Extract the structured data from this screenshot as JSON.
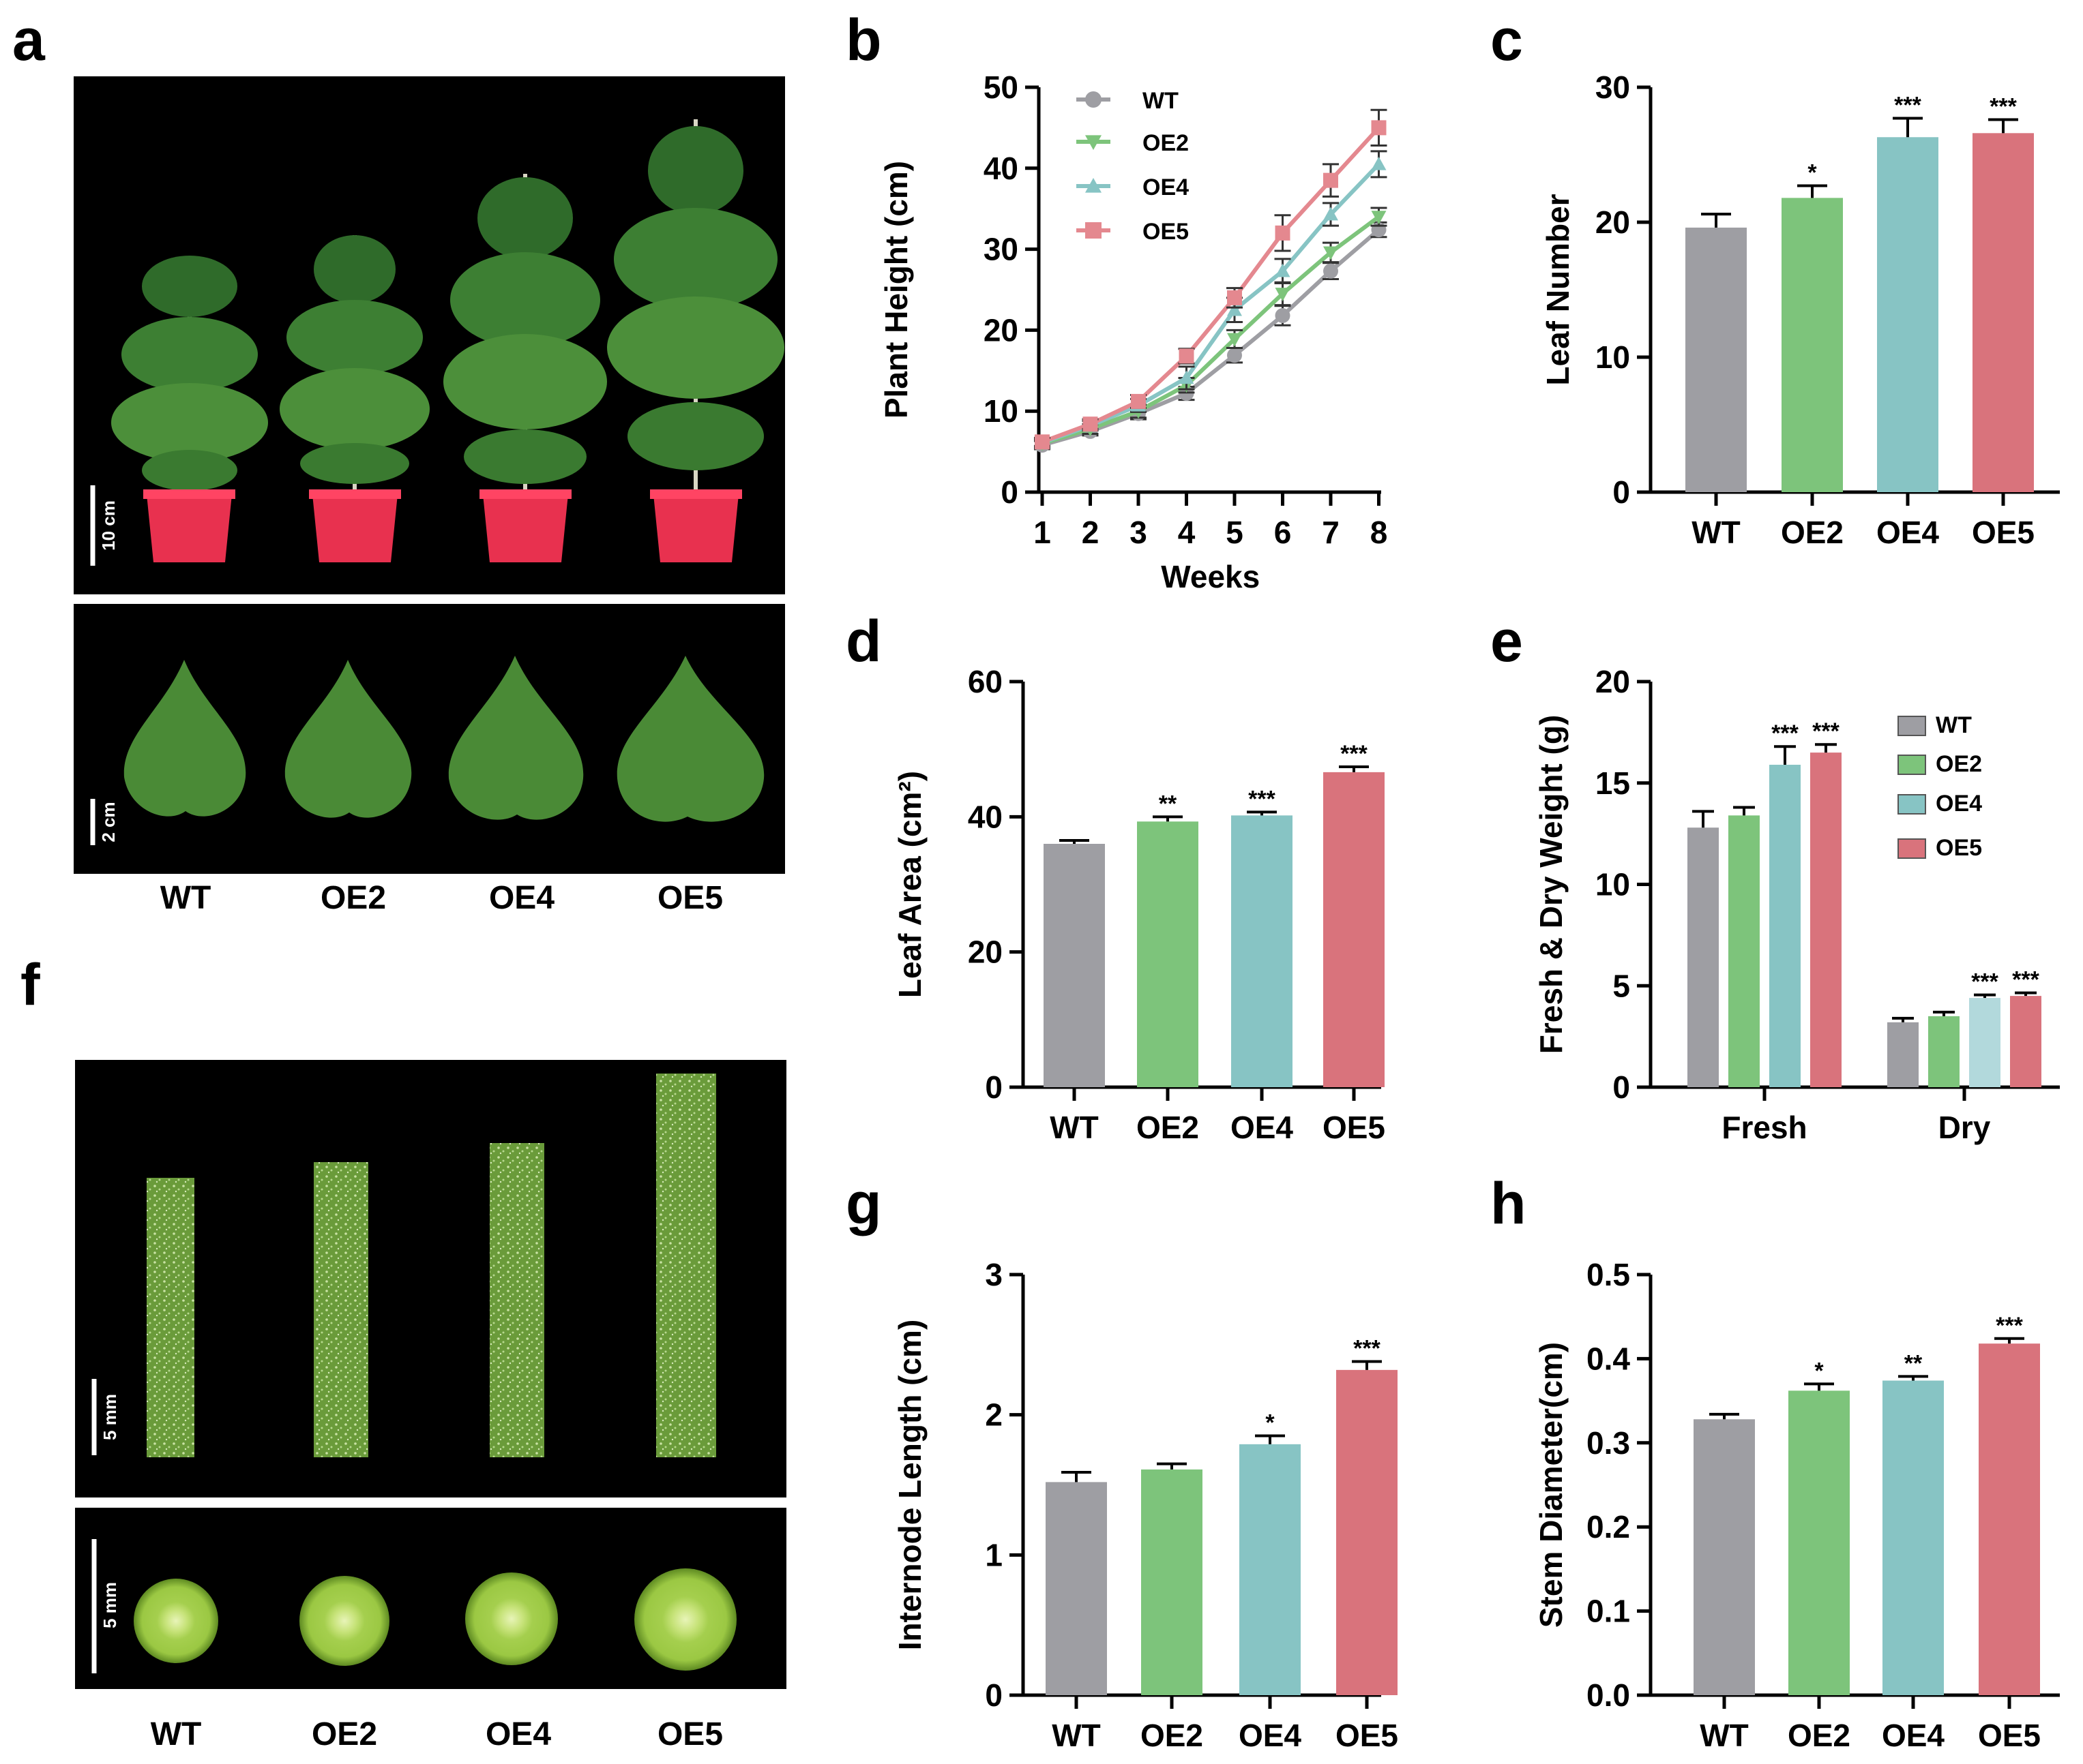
{
  "panels": {
    "a": {
      "label": "a",
      "scale_top": "10 cm",
      "scale_bottom": "2 cm",
      "genotypes": [
        "WT",
        "OE2",
        "OE4",
        "OE5"
      ]
    },
    "f": {
      "label": "f",
      "scale_top": "5 mm",
      "scale_bottom": "5 mm",
      "genotypes": [
        "WT",
        "OE2",
        "OE4",
        "OE5"
      ]
    }
  },
  "colors": {
    "WT": "#9e9ea3",
    "OE2": "#7dc47b",
    "OE4": "#87c4c4",
    "OE5": "#d9737c",
    "OE4_light": "#b2d9dc"
  },
  "chart_data": [
    {
      "id": "b",
      "label": "b",
      "type": "line",
      "xlabel": "Weeks",
      "ylabel": "Plant Height (cm)",
      "x": [
        1,
        2,
        3,
        4,
        5,
        6,
        7,
        8
      ],
      "ylim": [
        0,
        50
      ],
      "yticks": [
        0,
        10,
        20,
        30,
        40,
        50
      ],
      "series": [
        {
          "name": "WT",
          "color": "#9e9ea3",
          "marker": "circle",
          "values": [
            5.8,
            7.5,
            9.7,
            12.2,
            16.9,
            21.8,
            27.3,
            32.4
          ],
          "errors": [
            0.5,
            0.5,
            0.7,
            0.8,
            0.9,
            1.2,
            1.0,
            0.9
          ]
        },
        {
          "name": "OE2",
          "color": "#7dc47b",
          "marker": "triangle-down",
          "values": [
            6.0,
            7.8,
            10.0,
            13.2,
            18.9,
            24.5,
            29.6,
            34.0
          ],
          "errors": [
            0.5,
            0.6,
            0.8,
            0.9,
            1.1,
            1.4,
            1.2,
            1.1
          ]
        },
        {
          "name": "OE4",
          "color": "#87c4c4",
          "marker": "triangle-up",
          "values": [
            6.1,
            8.2,
            10.7,
            14.1,
            22.5,
            27.3,
            34.3,
            40.5
          ],
          "errors": [
            0.5,
            0.6,
            0.8,
            1.4,
            1.5,
            1.5,
            1.4,
            1.6
          ]
        },
        {
          "name": "OE5",
          "color": "#e4888f",
          "marker": "square",
          "values": [
            6.2,
            8.4,
            11.2,
            16.8,
            24.0,
            32.0,
            38.5,
            45.0
          ],
          "errors": [
            0.5,
            0.6,
            0.8,
            0.9,
            1.2,
            2.2,
            2.0,
            2.2
          ]
        }
      ]
    },
    {
      "id": "c",
      "label": "c",
      "type": "bar",
      "ylabel": "Leaf Number",
      "categories": [
        "WT",
        "OE2",
        "OE4",
        "OE5"
      ],
      "values": [
        19.6,
        21.8,
        26.3,
        26.6
      ],
      "errors": [
        1.0,
        0.9,
        1.4,
        1.0
      ],
      "significance": [
        "",
        "*",
        "***",
        "***"
      ],
      "ylim": [
        0,
        30
      ],
      "yticks": [
        0,
        10,
        20,
        30
      ],
      "tick_format": "int"
    },
    {
      "id": "d",
      "label": "d",
      "type": "bar",
      "ylabel": "Leaf Area (cm²)",
      "categories": [
        "WT",
        "OE2",
        "OE4",
        "OE5"
      ],
      "values": [
        36.0,
        39.3,
        40.2,
        46.6
      ],
      "errors": [
        0.5,
        0.7,
        0.5,
        0.8
      ],
      "significance": [
        "",
        "**",
        "***",
        "***"
      ],
      "ylim": [
        0,
        60
      ],
      "yticks": [
        0,
        20,
        40,
        60
      ],
      "tick_format": "int"
    },
    {
      "id": "e",
      "label": "e",
      "type": "bar",
      "ylabel": "Fresh & Dry Weight (g)",
      "categories": [
        "Fresh",
        "Dry"
      ],
      "series": [
        {
          "name": "WT",
          "color": "#9e9ea3",
          "values": [
            12.8,
            3.2
          ],
          "errors": [
            0.8,
            0.2
          ],
          "significance": [
            "",
            ""
          ]
        },
        {
          "name": "OE2",
          "color": "#7dc47b",
          "values": [
            13.4,
            3.5
          ],
          "errors": [
            0.4,
            0.2
          ],
          "significance": [
            "",
            ""
          ]
        },
        {
          "name": "OE4",
          "color": "#87c4c4",
          "values": [
            15.9,
            4.4
          ],
          "errors": [
            0.9,
            0.15
          ],
          "significance": [
            "***",
            "***"
          ]
        },
        {
          "name": "OE5",
          "color": "#d9737c",
          "values": [
            16.5,
            4.5
          ],
          "errors": [
            0.4,
            0.15
          ],
          "significance": [
            "***",
            "***"
          ]
        }
      ],
      "ylim": [
        0,
        20
      ],
      "yticks": [
        0,
        5,
        10,
        15,
        20
      ],
      "tick_format": "int",
      "legend": "top-right"
    },
    {
      "id": "g",
      "label": "g",
      "type": "bar",
      "ylabel": "Internode Length (cm)",
      "categories": [
        "WT",
        "OE2",
        "OE4",
        "OE5"
      ],
      "values": [
        1.52,
        1.61,
        1.79,
        2.32
      ],
      "errors": [
        0.07,
        0.04,
        0.06,
        0.06
      ],
      "significance": [
        "",
        "",
        "*",
        "***"
      ],
      "ylim": [
        0,
        3
      ],
      "yticks": [
        0,
        1,
        2,
        3
      ],
      "tick_format": "int"
    },
    {
      "id": "h",
      "label": "h",
      "type": "bar",
      "ylabel": "Stem Diameter(cm)",
      "categories": [
        "WT",
        "OE2",
        "OE4",
        "OE5"
      ],
      "values": [
        0.328,
        0.362,
        0.374,
        0.418
      ],
      "errors": [
        0.006,
        0.008,
        0.005,
        0.006
      ],
      "significance": [
        "",
        "*",
        "**",
        "***"
      ],
      "ylim": [
        0,
        0.5
      ],
      "yticks": [
        0,
        0.1,
        0.2,
        0.3,
        0.4,
        0.5
      ],
      "tick_format": "1dp"
    }
  ]
}
